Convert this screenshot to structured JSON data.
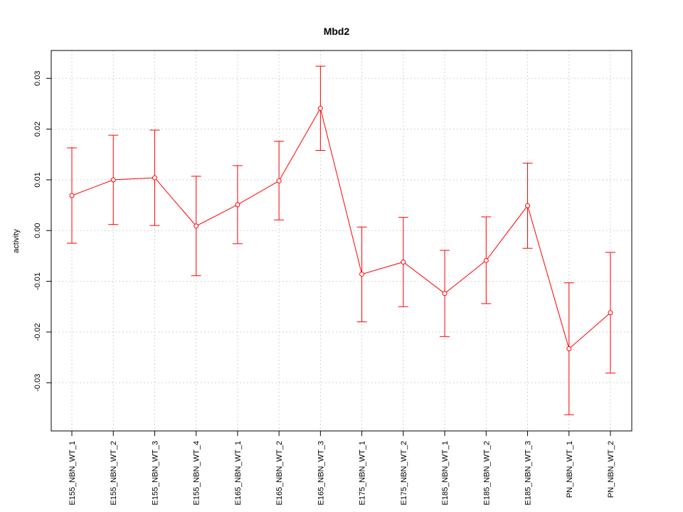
{
  "chart_data": {
    "type": "line",
    "title": "Mbd2",
    "xlabel": "",
    "ylabel": "activity",
    "ylim": [
      -0.0395,
      0.0355
    ],
    "yticks": [
      -0.03,
      -0.02,
      -0.01,
      0.0,
      0.01,
      0.02,
      0.03
    ],
    "ytick_labels": [
      "-0.03",
      "-0.02",
      "-0.01",
      "0.00",
      "0.01",
      "0.02",
      "0.03"
    ],
    "grid": true,
    "categories": [
      "E155_NBN_WT_1",
      "E155_NBN_WT_2",
      "E155_NBN_WT_3",
      "E155_NBN_WT_4",
      "E165_NBN_WT_1",
      "E165_NBN_WT_2",
      "E165_NBN_WT_3",
      "E175_NBN_WT_1",
      "E175_NBN_WT_2",
      "E185_NBN_WT_1",
      "E185_NBN_WT_2",
      "E185_NBN_WT_3",
      "PN_NBN_WT_1",
      "PN_NBN_WT_2"
    ],
    "series": [
      {
        "values": [
          0.0069,
          0.01,
          0.0104,
          0.0009,
          0.0051,
          0.0098,
          0.0241,
          -0.0086,
          -0.0062,
          -0.0124,
          -0.0059,
          0.0049,
          -0.0233,
          -0.0162
        ],
        "lower": [
          -0.0025,
          0.0012,
          0.001,
          -0.0089,
          -0.0026,
          0.0021,
          0.0158,
          -0.018,
          -0.015,
          -0.0209,
          -0.0144,
          -0.0035,
          -0.0363,
          -0.0281
        ],
        "upper": [
          0.0163,
          0.0188,
          0.0198,
          0.0107,
          0.0128,
          0.0176,
          0.0324,
          0.0007,
          0.0026,
          -0.0039,
          0.0027,
          0.0133,
          -0.0103,
          -0.0043
        ],
        "color": "#ff0000"
      }
    ],
    "grid_color": "#d3d3d3"
  }
}
